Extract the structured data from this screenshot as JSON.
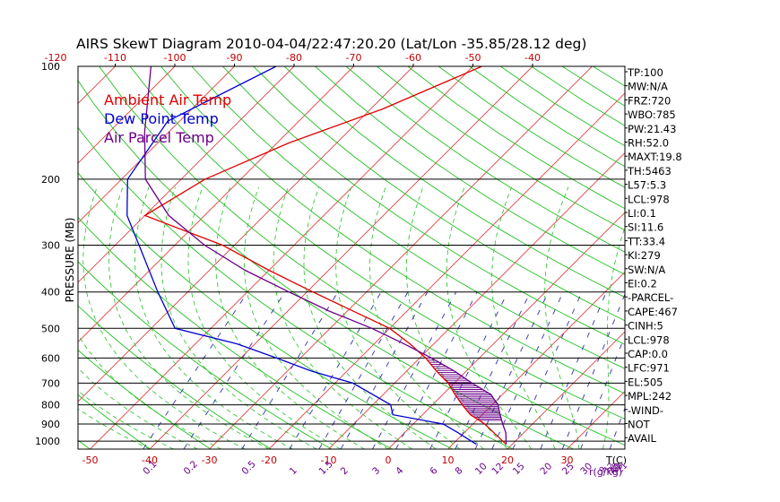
{
  "chart_data": {
    "type": "line",
    "title": "AIRS SkewT Diagram 2010-04-04/22:47:20.20 (Lat/Lon -35.85/28.12 deg)",
    "ylabel": "PRESSURE (MB)",
    "xlabel_right": "T(C)",
    "mixing_label": "r(g/kg)",
    "y_scale": "log",
    "ylim": [
      1050,
      100
    ],
    "pressure_ticks": [
      100,
      200,
      300,
      400,
      500,
      600,
      700,
      800,
      900,
      1000
    ],
    "bottom_temp_ticks": [
      -50,
      -40,
      -30,
      -20,
      -10,
      0,
      10,
      20,
      30
    ],
    "top_temp_ticks": [
      -120,
      -110,
      -100,
      -90,
      -80,
      -70,
      -60,
      -50,
      -40
    ],
    "mixing_ratio_ticks": [
      "0.1",
      "0.2",
      "0.5",
      "1",
      "1.5",
      "2",
      "3",
      "4",
      "6",
      "8",
      "10",
      "12",
      "15",
      "20",
      "25",
      "30",
      "40"
    ],
    "mixing_ratio_ticks_minor": [
      "9",
      "12",
      "15",
      "18",
      "21"
    ],
    "legend": [
      {
        "label": "Ambient Air Temp",
        "color": "#e00000"
      },
      {
        "label": "Dew Point Temp",
        "color": "#0000d0"
      },
      {
        "label": "Air Parcel Temp",
        "color": "#6a008a"
      }
    ],
    "series": [
      {
        "name": "Ambient Air Temp",
        "color": "#e00000",
        "points": [
          [
            100,
            -48.5
          ],
          [
            130,
            -58
          ],
          [
            160,
            -68
          ],
          [
            200,
            -76
          ],
          [
            250,
            -80
          ],
          [
            300,
            -62
          ],
          [
            350,
            -50
          ],
          [
            400,
            -39
          ],
          [
            450,
            -29
          ],
          [
            500,
            -20
          ],
          [
            550,
            -14
          ],
          [
            600,
            -9
          ],
          [
            650,
            -5
          ],
          [
            700,
            -1
          ],
          [
            750,
            2
          ],
          [
            800,
            5
          ],
          [
            850,
            8
          ],
          [
            900,
            12
          ],
          [
            950,
            15
          ],
          [
            1020,
            19
          ]
        ]
      },
      {
        "name": "Dew Point Temp",
        "color": "#0000d0",
        "points": [
          [
            100,
            -83
          ],
          [
            140,
            -92
          ],
          [
            200,
            -89
          ],
          [
            250,
            -83
          ],
          [
            300,
            -76
          ],
          [
            400,
            -65
          ],
          [
            500,
            -56
          ],
          [
            550,
            -43
          ],
          [
            600,
            -34
          ],
          [
            650,
            -26
          ],
          [
            700,
            -17
          ],
          [
            800,
            -7
          ],
          [
            850,
            -5
          ],
          [
            900,
            5
          ],
          [
            950,
            9
          ],
          [
            1020,
            14
          ]
        ]
      },
      {
        "name": "Air Parcel Temp",
        "color": "#6a008a",
        "points": [
          [
            100,
            -104
          ],
          [
            150,
            -94
          ],
          [
            200,
            -86
          ],
          [
            250,
            -76
          ],
          [
            300,
            -65
          ],
          [
            350,
            -54
          ],
          [
            400,
            -43
          ],
          [
            450,
            -33
          ],
          [
            500,
            -23
          ],
          [
            550,
            -15
          ],
          [
            600,
            -8
          ],
          [
            650,
            -2
          ],
          [
            700,
            3
          ],
          [
            750,
            8
          ],
          [
            800,
            11
          ],
          [
            850,
            13
          ],
          [
            900,
            15
          ],
          [
            950,
            17
          ],
          [
            1020,
            19
          ]
        ]
      }
    ],
    "cape_hatch": {
      "top": 600,
      "bottom": 880
    }
  },
  "indices": [
    "TP:100",
    "MW:N/A",
    "FRZ:720",
    "WBO:785",
    "PW:21.43",
    "RH:52.0",
    "MAXT:19.8",
    "TH:5463",
    "L57:5.3",
    "LCL:978",
    "LI:0.1",
    "SI:11.6",
    "TT:33.4",
    "KI:279",
    "SW:N/A",
    "EI:0.2",
    "-PARCEL-",
    "CAPE:467",
    "CINH:5",
    "LCL:978",
    "CAP:0.0",
    "LFC:971",
    "EL:505",
    "MPL:242",
    "-WIND-",
    "NOT",
    "AVAIL"
  ]
}
